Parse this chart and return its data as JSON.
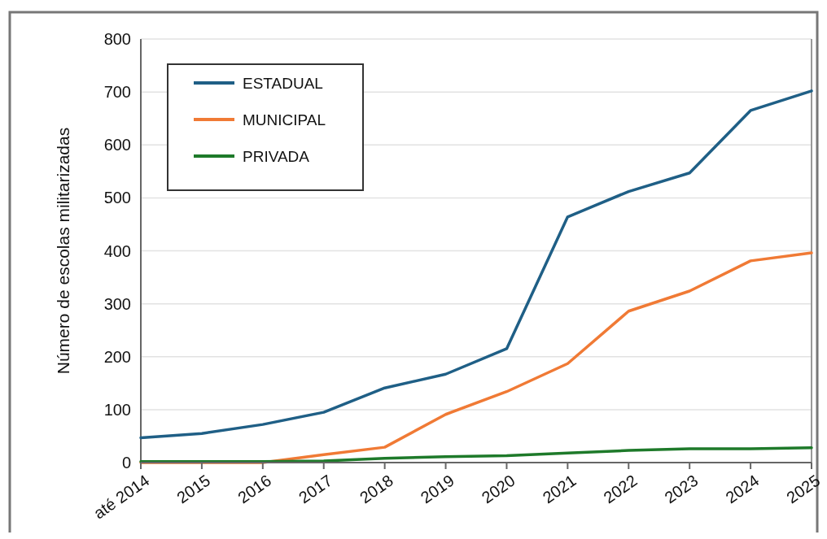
{
  "chart_data": {
    "type": "line",
    "ylabel": "Número de escolas militarizadas",
    "categories": [
      "até 2014",
      "2015",
      "2016",
      "2017",
      "2018",
      "2019",
      "2020",
      "2021",
      "2022",
      "2023",
      "2024",
      "2025"
    ],
    "series": [
      {
        "name": "ESTADUAL",
        "color": "#1f5f86",
        "values": [
          47,
          55,
          72,
          95,
          141,
          167,
          215,
          464,
          512,
          547,
          665,
          702
        ]
      },
      {
        "name": "MUNICIPAL",
        "color": "#f07a35",
        "values": [
          0,
          0,
          0,
          15,
          29,
          91,
          134,
          187,
          286,
          324,
          381,
          396
        ]
      },
      {
        "name": "PRIVADA",
        "color": "#1e7a2a",
        "values": [
          2,
          2,
          2,
          3,
          8,
          11,
          13,
          18,
          23,
          26,
          26,
          28
        ]
      }
    ],
    "ylim": [
      0,
      800
    ],
    "yticks": [
      0,
      100,
      200,
      300,
      400,
      500,
      600,
      700,
      800
    ],
    "grid": "y",
    "legend": "top left",
    "marker": "none",
    "line_style": "solid"
  }
}
